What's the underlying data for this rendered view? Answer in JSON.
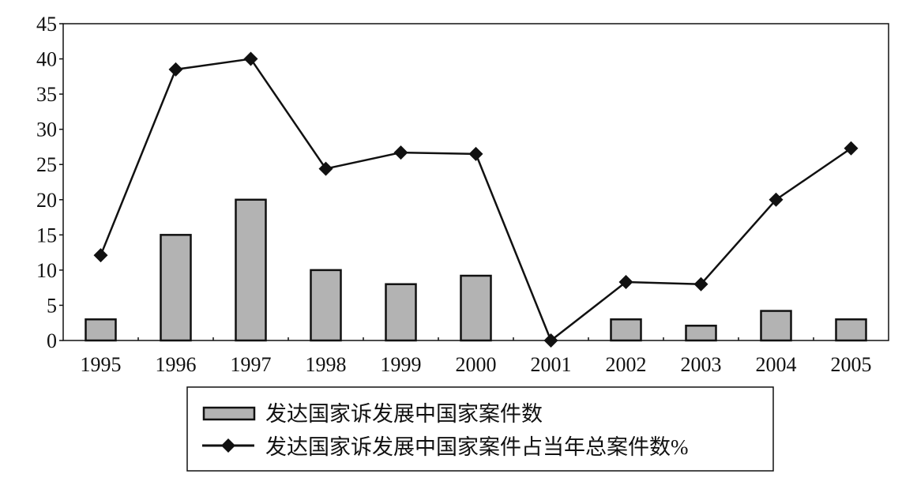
{
  "chart_data": {
    "type": "bar",
    "categories": [
      "1995",
      "1996",
      "1997",
      "1998",
      "1999",
      "2000",
      "2001",
      "2002",
      "2003",
      "2004",
      "2005"
    ],
    "series": [
      {
        "name": "发达国家诉发展中国家案件数",
        "type": "bar",
        "values": [
          3,
          15,
          20,
          10,
          8,
          9.2,
          0,
          3,
          2.1,
          4.2,
          3
        ],
        "color": "#b3b3b3"
      },
      {
        "name": "发达国家诉发展中国家案件占当年总案件数%",
        "type": "line",
        "values": [
          12.1,
          38.5,
          40,
          24.4,
          26.7,
          26.5,
          0,
          8.3,
          8,
          20,
          27.3
        ],
        "color": "#111111",
        "marker": "diamond"
      }
    ],
    "yticks": [
      "0",
      "5",
      "10",
      "15",
      "20",
      "25",
      "30",
      "35",
      "40",
      "45"
    ],
    "ylim": [
      0,
      45
    ],
    "title": "",
    "xlabel": "",
    "ylabel": "",
    "grid": false,
    "legend": "bottom-center"
  }
}
